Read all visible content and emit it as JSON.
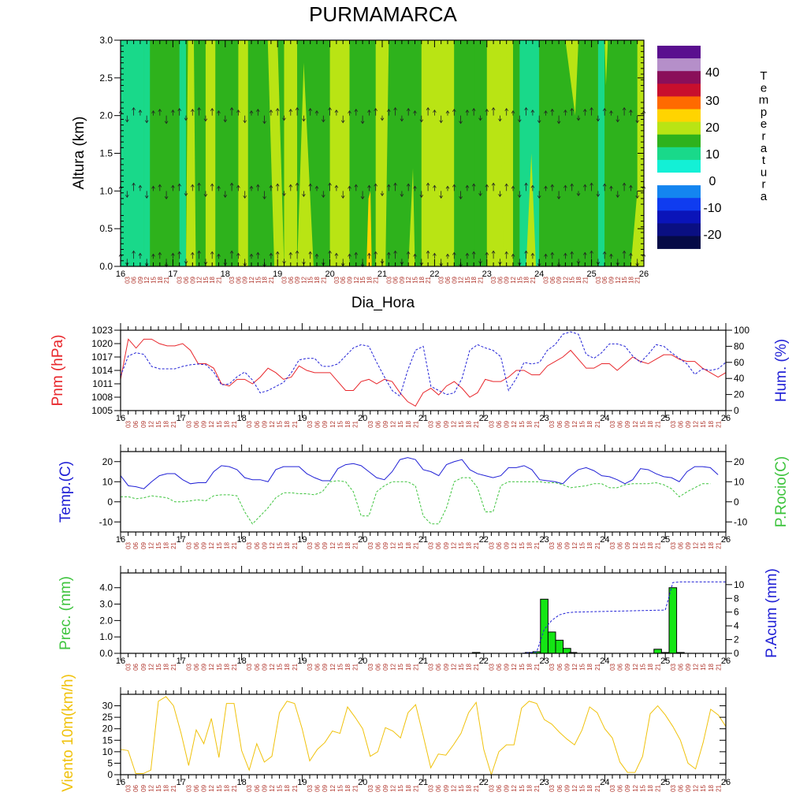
{
  "title": "PURMAMARCA",
  "day_labels": [
    "16",
    "17",
    "18",
    "19",
    "20",
    "21",
    "22",
    "23",
    "24",
    "25",
    "26"
  ],
  "hour_labels": [
    "03",
    "06",
    "09",
    "12",
    "15",
    "18",
    "21"
  ],
  "colors": {
    "red": "#e8262b",
    "blue": "#2121d6",
    "green": "#3ec43e",
    "precip_bar": "#14e614",
    "wind": "#f0c20c",
    "hour_label": "#b0352c"
  },
  "chart_data": [
    {
      "type": "heatmap",
      "name": "temperature-cross-section",
      "ylabel": "Altura (km)",
      "xlabel": "Dia_Hora",
      "ylim": [
        0,
        3.0
      ],
      "yticks": [
        "0.0",
        "0.5",
        "1.0",
        "1.5",
        "2.0",
        "2.5",
        "3.0"
      ],
      "x_range": [
        0,
        80
      ],
      "legend_title": "Temperatura",
      "legend_labels": [
        "40",
        "30",
        "20",
        "10",
        "0",
        "-10",
        "-20"
      ],
      "levels": [
        {
          "color": "#5a0f8f"
        },
        {
          "color": "#b58fc9"
        },
        {
          "color": "#8a0f5a"
        },
        {
          "color": "#c80f2d"
        },
        {
          "color": "#ff6a00"
        },
        {
          "color": "#ffd400"
        },
        {
          "color": "#b9e414"
        },
        {
          "color": "#2eb21c"
        },
        {
          "color": "#19d98a"
        },
        {
          "color": "#13f0d6"
        },
        {
          "color": "#ffffff"
        },
        {
          "color": "#1485f0"
        },
        {
          "color": "#0f3cf0"
        },
        {
          "color": "#0a14b9"
        },
        {
          "color": "#0a0f82"
        },
        {
          "color": "#050a46"
        }
      ],
      "columns": [
        {
          "x": 0,
          "c": "#19d98a"
        },
        {
          "x": 3.5,
          "c": "#19d98a"
        },
        {
          "x": 4.5,
          "c": "#2eb21c"
        },
        {
          "x": 8,
          "c": "#2eb21c"
        },
        {
          "x": 9,
          "c": "#19d98a"
        },
        {
          "x": 10,
          "c": "#2eb21c"
        },
        {
          "x": 13,
          "c": "#b9e414"
        },
        {
          "x": 14.5,
          "c": "#2eb21c"
        },
        {
          "x": 18,
          "c": "#b9e414"
        },
        {
          "x": 19.5,
          "c": "#2eb21c"
        },
        {
          "x": 24,
          "c": "#2eb21c"
        },
        {
          "x": 25,
          "c": "#b9e414"
        },
        {
          "x": 27,
          "c": "#2eb21c"
        },
        {
          "x": 31,
          "c": "#2eb21c"
        },
        {
          "x": 32,
          "c": "#b9e414"
        },
        {
          "x": 35,
          "c": "#2eb21c"
        },
        {
          "x": 39,
          "c": "#b9e414"
        },
        {
          "x": 40.5,
          "c": "#2eb21c"
        },
        {
          "x": 45,
          "c": "#2eb21c"
        },
        {
          "x": 46,
          "c": "#b9e414"
        },
        {
          "x": 51,
          "c": "#2eb21c"
        },
        {
          "x": 54,
          "c": "#2eb21c"
        },
        {
          "x": 56,
          "c": "#b9e414"
        },
        {
          "x": 60,
          "c": "#2eb21c"
        },
        {
          "x": 61,
          "c": "#19d98a"
        },
        {
          "x": 64,
          "c": "#2eb21c"
        },
        {
          "x": 70,
          "c": "#2eb21c"
        },
        {
          "x": 73,
          "c": "#19d98a"
        },
        {
          "x": 74,
          "c": "#2eb21c"
        },
        {
          "x": 79,
          "c": "#b9e414"
        },
        {
          "x": 80,
          "c": "#2eb21c"
        }
      ],
      "wind_levels_km": [
        0.1,
        1.0,
        2.0
      ]
    },
    {
      "type": "line",
      "name": "pressure-humidity",
      "ylabel_left": "Pnm (hPa)",
      "ylabel_right": "Hum. (%)",
      "ylim_left": [
        1005,
        1023
      ],
      "yticks_left": [
        "1005",
        "1008",
        "1011",
        "1014",
        "1017",
        "1020",
        "1023"
      ],
      "ylim_right": [
        0,
        100
      ],
      "yticks_right": [
        "0",
        "20",
        "40",
        "60",
        "80",
        "100"
      ],
      "series": [
        {
          "name": "Pnm",
          "axis": "left",
          "style": "solid",
          "color": "#e8262b",
          "values": [
            1012,
            1021,
            1019,
            1021,
            1021,
            1020,
            1019.5,
            1019.5,
            1020,
            1018.5,
            1015.5,
            1015.5,
            1014.5,
            1011,
            1010.5,
            1012,
            1012,
            1011,
            1012.5,
            1014.5,
            1013.5,
            1012,
            1012.5,
            1015,
            1014,
            1013.5,
            1013.5,
            1013.5,
            1011.5,
            1009.5,
            1009.5,
            1011.5,
            1012,
            1011,
            1012,
            1011.5,
            1009,
            1007,
            1006,
            1009,
            1010,
            1008.5,
            1010.5,
            1011.5,
            1010,
            1008,
            1009,
            1012,
            1011.5,
            1011.5,
            1012.5,
            1014,
            1014,
            1013,
            1013,
            1015,
            1016,
            1017,
            1018.5,
            1016.5,
            1014.5,
            1014.5,
            1015.5,
            1015.5,
            1014,
            1015.5,
            1017,
            1016,
            1015.5,
            1016.5,
            1017.5,
            1017.5,
            1016.5,
            1016,
            1016,
            1014.5,
            1013.5,
            1012.5,
            1013.5
          ]
        },
        {
          "name": "Hum",
          "axis": "right",
          "style": "dashed",
          "color": "#2121d6",
          "values": [
            43,
            68,
            72,
            70,
            55,
            52,
            52,
            52,
            55,
            57,
            58,
            57,
            48,
            32,
            33,
            42,
            48,
            38,
            22,
            25,
            30,
            35,
            47,
            63,
            65,
            65,
            55,
            55,
            58,
            68,
            78,
            82,
            80,
            60,
            42,
            25,
            18,
            50,
            75,
            80,
            30,
            25,
            20,
            22,
            40,
            75,
            82,
            78,
            75,
            67,
            25,
            40,
            60,
            58,
            60,
            75,
            82,
            95,
            98,
            95,
            70,
            65,
            72,
            83,
            83,
            80,
            68,
            60,
            70,
            82,
            80,
            72,
            65,
            58,
            45,
            52,
            50,
            52,
            60
          ]
        }
      ]
    },
    {
      "type": "line",
      "name": "temperature-dewpoint",
      "ylabel_left": "Temp.(C)",
      "ylabel_right": "P.Rocio(C)",
      "ylim_left": [
        -15,
        25
      ],
      "yticks_left": [
        "-10",
        "0",
        "10",
        "20"
      ],
      "yticks_right": [
        "-10",
        "0",
        "10",
        "20"
      ],
      "series": [
        {
          "name": "Temp",
          "axis": "left",
          "style": "solid",
          "color": "#2121d6",
          "values": [
            13,
            8,
            7.5,
            6.5,
            10,
            13,
            14,
            14,
            11,
            9,
            9.5,
            9.5,
            15,
            18,
            17.5,
            16,
            12,
            11,
            11,
            10,
            16,
            17.5,
            17.5,
            17.5,
            14,
            12,
            10.5,
            10.5,
            16.5,
            18.5,
            19,
            18,
            15,
            12,
            11,
            15,
            21,
            22,
            21,
            16,
            15,
            13,
            18.5,
            20,
            21,
            16,
            14,
            13,
            12,
            13,
            17,
            17,
            18,
            16,
            11,
            10.5,
            10,
            9,
            13,
            16,
            17,
            15.5,
            13,
            12.5,
            11,
            9,
            11,
            16.5,
            16,
            14,
            12.5,
            12,
            10,
            15,
            17.5,
            17.5,
            17,
            13.5
          ]
        },
        {
          "name": "Rocio",
          "axis": "left",
          "style": "dashed",
          "color": "#3ec43e",
          "values": [
            2.5,
            2.5,
            1.5,
            2,
            3,
            2.5,
            2,
            0,
            0,
            0.5,
            1,
            0.5,
            3,
            3.5,
            3.5,
            3,
            -5,
            -11,
            -7,
            -3,
            2,
            4.5,
            4.5,
            4,
            4,
            3.5,
            5,
            10,
            10.5,
            10,
            5,
            -7,
            -7,
            5,
            8,
            10,
            10,
            10,
            8,
            -7,
            -11,
            -11,
            -3,
            10,
            12,
            12,
            7,
            -5,
            -5,
            8,
            10,
            10,
            10,
            10,
            10,
            9.5,
            9.5,
            8.5,
            7,
            7.5,
            8,
            9,
            9,
            7,
            7,
            8.5,
            9,
            9,
            9,
            9.5,
            8.5,
            6.5,
            2.5,
            5,
            7,
            9,
            9
          ]
        }
      ]
    },
    {
      "type": "bar",
      "name": "precipitation",
      "ylabel_left": "Prec. (mm)",
      "ylabel_right": "P.Acum (mm)",
      "ylim_left": [
        0,
        4.9
      ],
      "yticks_left": [
        "0.0",
        "1.0",
        "2.0",
        "3.0",
        "4.0"
      ],
      "ylim_right": [
        0,
        11.7
      ],
      "yticks_right": [
        "0",
        "2",
        "4",
        "6",
        "8",
        "10"
      ],
      "bars": [
        {
          "x": 47,
          "value": 0.05
        },
        {
          "x": 54,
          "value": 0.05
        },
        {
          "x": 55,
          "value": 0.1
        },
        {
          "x": 56,
          "value": 3.3
        },
        {
          "x": 57,
          "value": 1.3
        },
        {
          "x": 58,
          "value": 0.8
        },
        {
          "x": 59,
          "value": 0.3
        },
        {
          "x": 59.8,
          "value": 0.05
        },
        {
          "x": 71,
          "value": 0.25
        },
        {
          "x": 72,
          "value": 0.05
        },
        {
          "x": 73,
          "value": 4.0
        },
        {
          "x": 74,
          "value": 0.05
        }
      ],
      "accum": {
        "color": "#2121d6",
        "x": [
          0,
          53,
          54,
          55,
          56,
          57,
          58,
          59,
          60,
          72,
          73,
          74,
          80
        ],
        "values": [
          0,
          0,
          0.1,
          0.2,
          3.5,
          4.8,
          5.6,
          5.9,
          6.0,
          6.3,
          10.3,
          10.4,
          10.4
        ]
      }
    },
    {
      "type": "line",
      "name": "wind-10m",
      "ylabel": "Viento 10m(km/h)",
      "ylim": [
        0,
        35
      ],
      "yticks": [
        "0",
        "5",
        "10",
        "15",
        "20",
        "25",
        "30"
      ],
      "series": [
        {
          "name": "Viento",
          "color": "#f0c20c",
          "values": [
            11,
            10.5,
            0.5,
            0.5,
            2,
            32,
            34,
            30,
            18,
            4,
            19.5,
            13.5,
            24.5,
            7.5,
            31,
            31,
            10.5,
            2,
            13.5,
            5.5,
            8,
            27,
            32,
            31,
            20,
            6,
            11,
            14,
            19,
            18,
            29.5,
            25,
            20,
            8,
            10,
            20.5,
            19,
            16,
            27,
            30.5,
            17,
            3,
            9,
            8.5,
            13,
            18,
            27,
            31.5,
            11,
            0,
            10,
            13,
            13,
            29,
            32,
            31,
            24,
            22,
            18.5,
            15.5,
            13,
            19.5,
            29.5,
            27,
            20,
            16,
            5.5,
            1,
            1,
            8,
            26.5,
            30,
            26,
            21,
            15,
            5,
            2.5,
            14,
            28.5,
            26,
            21
          ]
        }
      ]
    }
  ]
}
